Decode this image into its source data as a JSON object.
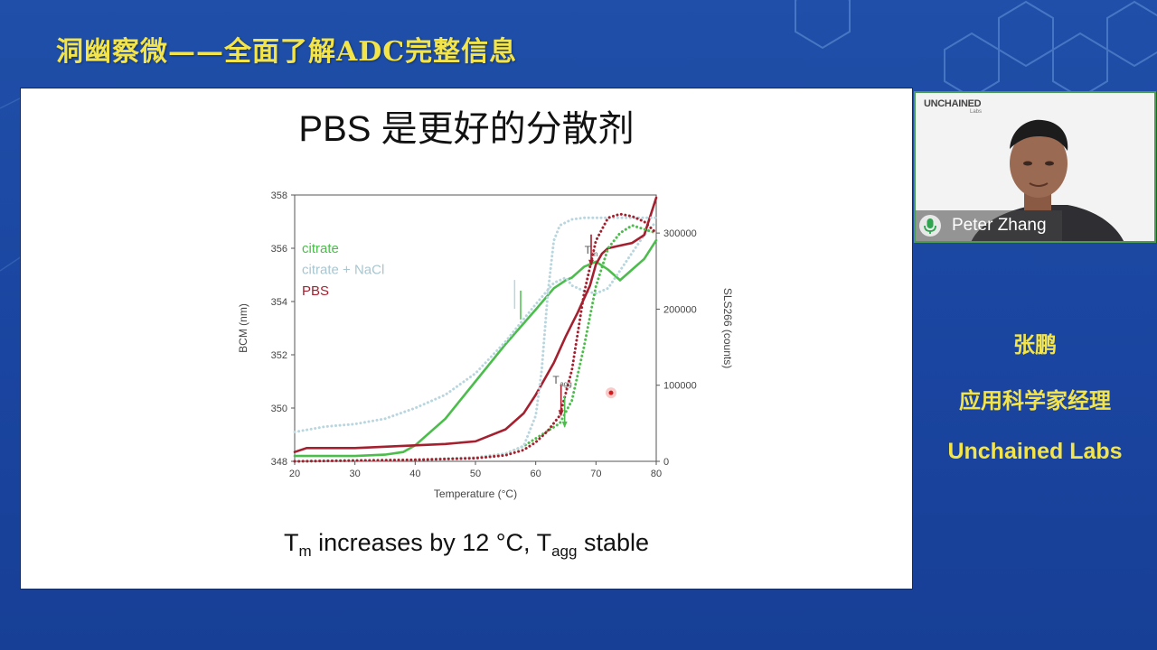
{
  "banner": {
    "title": "洞幽察微——全面了解ADC完整信息"
  },
  "slide": {
    "title": "PBS 是更好的分散剂",
    "caption": {
      "t1": "T",
      "t1_sub": "m",
      "t2": " increases by 12 °C, T",
      "t2_sub": "agg",
      "t3": " stable"
    }
  },
  "chart_data": {
    "type": "line",
    "xlabel": "Temperature (°C)",
    "ylabel_left": "BCM (nm)",
    "ylabel_right": "SLS266 (counts)",
    "xlim": [
      20,
      80
    ],
    "ylim_left": [
      348,
      358
    ],
    "ylim_right": [
      0,
      350000
    ],
    "x_ticks": [
      "20",
      "30",
      "40",
      "50",
      "60",
      "70",
      "80"
    ],
    "y_ticks_left": [
      "348",
      "350",
      "352",
      "354",
      "356",
      "358"
    ],
    "y_ticks_right": [
      "0",
      "100000",
      "200000",
      "300000"
    ],
    "legend": [
      "citrate",
      "citrate + NaCl",
      "PBS"
    ],
    "annotations": {
      "tm": "T",
      "tm_sub": "m",
      "tagg": "T",
      "tagg_sub": "agg"
    },
    "colors": {
      "citrate": "#4cbd4c",
      "citrate_nacl": "#b9d6df",
      "pbs": "#a5202f"
    },
    "series": [
      {
        "name": "citrate",
        "axis": "left",
        "style": "solid",
        "x": [
          20,
          25,
          30,
          35,
          38,
          40,
          45,
          50,
          55,
          60,
          63,
          65,
          66,
          68,
          70,
          72,
          74,
          76,
          78,
          80
        ],
        "y": [
          348.2,
          348.2,
          348.2,
          348.25,
          348.35,
          348.6,
          349.6,
          351.0,
          352.4,
          353.7,
          354.5,
          354.8,
          354.9,
          355.3,
          355.5,
          355.2,
          354.8,
          355.2,
          355.6,
          356.3
        ]
      },
      {
        "name": "citrate + NaCl",
        "axis": "left",
        "style": "dotted",
        "x": [
          20,
          25,
          30,
          35,
          40,
          45,
          50,
          55,
          60,
          63,
          65,
          66,
          68,
          70,
          72,
          75,
          78,
          80
        ],
        "y": [
          349.1,
          349.3,
          349.4,
          349.6,
          350.0,
          350.5,
          351.3,
          352.5,
          353.9,
          354.7,
          354.9,
          354.6,
          354.4,
          354.3,
          354.5,
          355.5,
          356.5,
          357.0
        ]
      },
      {
        "name": "PBS",
        "axis": "left",
        "style": "solid",
        "x": [
          20,
          22,
          25,
          30,
          35,
          40,
          45,
          50,
          55,
          58,
          60,
          63,
          65,
          67,
          69,
          70,
          71,
          72,
          74,
          76,
          78,
          80
        ],
        "y": [
          348.35,
          348.5,
          348.5,
          348.5,
          348.55,
          348.6,
          348.65,
          348.75,
          349.2,
          349.8,
          350.5,
          351.7,
          352.7,
          353.6,
          354.6,
          355.4,
          355.8,
          356.0,
          356.1,
          356.2,
          356.5,
          357.9
        ]
      },
      {
        "name": "citrate SLS",
        "axis": "right",
        "style": "dotted",
        "x": [
          20,
          40,
          50,
          55,
          58,
          60,
          62,
          64,
          66,
          68,
          70,
          72,
          74,
          76,
          78,
          80
        ],
        "y": [
          0,
          2000,
          5000,
          10000,
          20000,
          30000,
          40000,
          50000,
          80000,
          150000,
          230000,
          280000,
          300000,
          310000,
          305000,
          300000
        ]
      },
      {
        "name": "citrate + NaCl SLS",
        "axis": "right",
        "style": "dotted",
        "x": [
          20,
          40,
          50,
          55,
          58,
          59,
          60,
          61,
          62,
          63,
          64,
          66,
          68,
          70,
          72,
          74,
          76,
          78,
          80
        ],
        "y": [
          0,
          2000,
          5000,
          10000,
          20000,
          40000,
          60000,
          120000,
          220000,
          290000,
          310000,
          318000,
          320000,
          320000,
          320000,
          320000,
          320000,
          320000,
          320000
        ]
      },
      {
        "name": "PBS SLS",
        "axis": "right",
        "style": "dotted",
        "x": [
          20,
          40,
          50,
          55,
          58,
          60,
          62,
          64,
          66,
          68,
          70,
          72,
          74,
          76,
          78,
          80
        ],
        "y": [
          0,
          2000,
          4000,
          8000,
          15000,
          25000,
          40000,
          60000,
          120000,
          220000,
          290000,
          320000,
          325000,
          322000,
          315000,
          300000
        ]
      }
    ],
    "markers": [
      {
        "series": "citrate + NaCl",
        "x": 56.5,
        "y": 354.2,
        "type": "tick"
      },
      {
        "series": "citrate",
        "x": 57.5,
        "y": 353.8,
        "type": "tick"
      },
      {
        "series": "PBS",
        "x": 69.2,
        "y": 355.5,
        "type": "arrow"
      },
      {
        "series": "PBS SLS",
        "x": 64.2,
        "y": 65000,
        "type": "arrow"
      },
      {
        "series": "citrate SLS",
        "x": 64.8,
        "y": 50000,
        "type": "arrow"
      }
    ]
  },
  "video": {
    "logo": "UNCHAINED",
    "logo_sub": "Labs",
    "presenter_name": "Peter Zhang"
  },
  "speaker": {
    "name": "张鹏",
    "role": "应用科学家经理",
    "company": "Unchained Labs"
  }
}
